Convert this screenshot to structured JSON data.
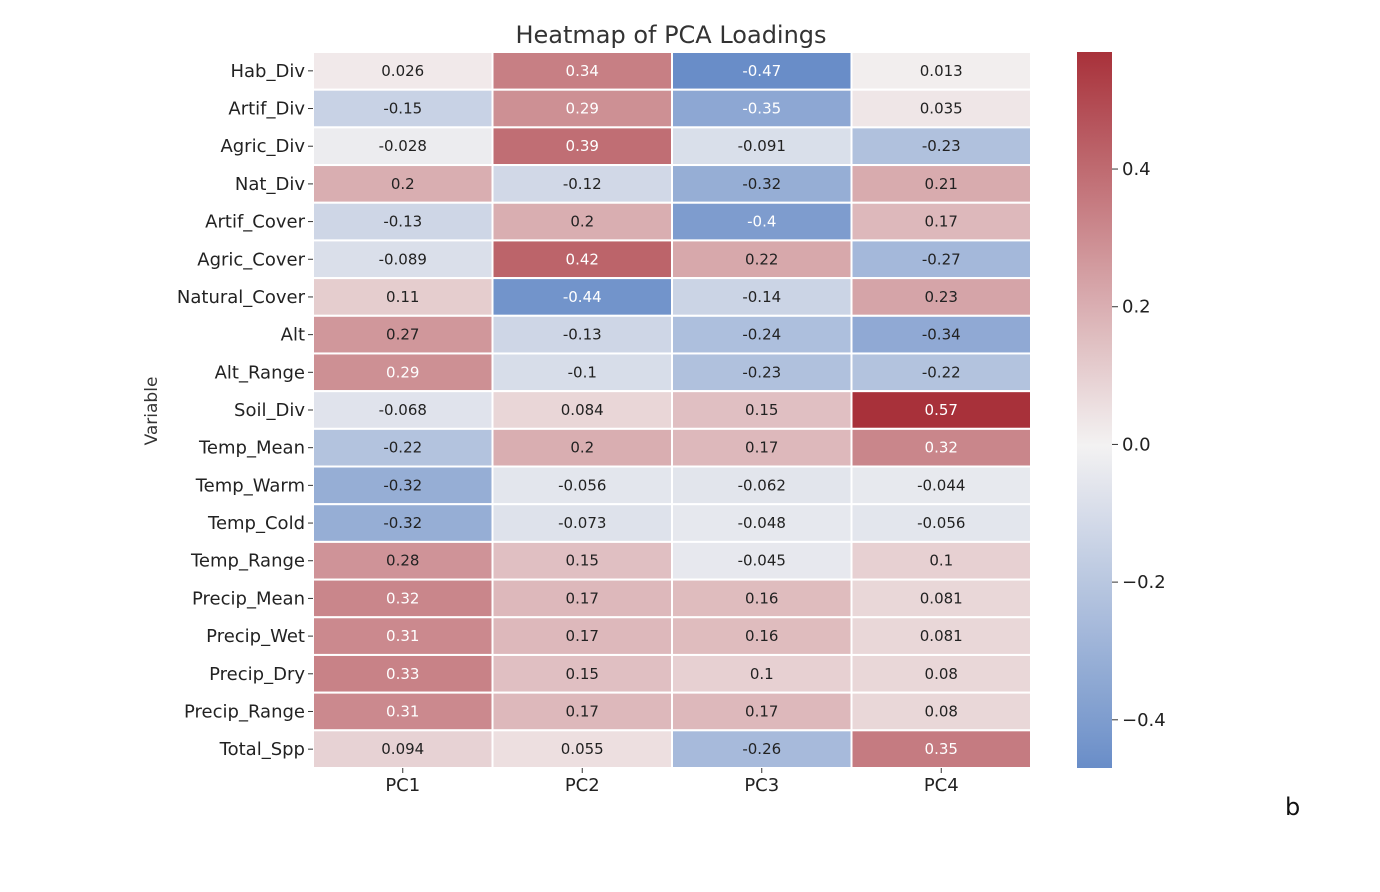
{
  "panel_label": "b",
  "chart_data": {
    "type": "heatmap",
    "title": "Heatmap of PCA Loadings",
    "ylabel": "Variable",
    "xlabel": "",
    "columns": [
      "PC1",
      "PC2",
      "PC3",
      "PC4"
    ],
    "rows": [
      "Hab_Div",
      "Artif_Div",
      "Agric_Div",
      "Nat_Div",
      "Artif_Cover",
      "Agric_Cover",
      "Natural_Cover",
      "Alt",
      "Alt_Range",
      "Soil_Div",
      "Temp_Mean",
      "Temp_Warm",
      "Temp_Cold",
      "Temp_Range",
      "Precip_Mean",
      "Precip_Wet",
      "Precip_Dry",
      "Precip_Range",
      "Total_Spp"
    ],
    "values": [
      [
        0.026,
        0.34,
        -0.47,
        0.013
      ],
      [
        -0.15,
        0.29,
        -0.35,
        0.035
      ],
      [
        -0.028,
        0.39,
        -0.091,
        -0.23
      ],
      [
        0.2,
        -0.12,
        -0.32,
        0.21
      ],
      [
        -0.13,
        0.2,
        -0.4,
        0.17
      ],
      [
        -0.089,
        0.42,
        0.22,
        -0.27
      ],
      [
        0.11,
        -0.44,
        -0.14,
        0.23
      ],
      [
        0.27,
        -0.13,
        -0.24,
        -0.34
      ],
      [
        0.29,
        -0.1,
        -0.23,
        -0.22
      ],
      [
        -0.068,
        0.084,
        0.15,
        0.57
      ],
      [
        -0.22,
        0.2,
        0.17,
        0.32
      ],
      [
        -0.32,
        -0.056,
        -0.062,
        -0.044
      ],
      [
        -0.32,
        -0.073,
        -0.048,
        -0.056
      ],
      [
        0.28,
        0.15,
        -0.045,
        0.1
      ],
      [
        0.32,
        0.17,
        0.16,
        0.081
      ],
      [
        0.31,
        0.17,
        0.16,
        0.081
      ],
      [
        0.33,
        0.15,
        0.1,
        0.08
      ],
      [
        0.31,
        0.17,
        0.17,
        0.08
      ],
      [
        0.094,
        0.055,
        -0.26,
        0.35
      ]
    ],
    "labels": [
      [
        "0.026",
        "0.34",
        "-0.47",
        "0.013"
      ],
      [
        "-0.15",
        "0.29",
        "-0.35",
        "0.035"
      ],
      [
        "-0.028",
        "0.39",
        "-0.091",
        "-0.23"
      ],
      [
        "0.2",
        "-0.12",
        "-0.32",
        "0.21"
      ],
      [
        "-0.13",
        "0.2",
        "-0.4",
        "0.17"
      ],
      [
        "-0.089",
        "0.42",
        "0.22",
        "-0.27"
      ],
      [
        "0.11",
        "-0.44",
        "-0.14",
        "0.23"
      ],
      [
        "0.27",
        "-0.13",
        "-0.24",
        "-0.34"
      ],
      [
        "0.29",
        "-0.1",
        "-0.23",
        "-0.22"
      ],
      [
        "-0.068",
        "0.084",
        "0.15",
        "0.57"
      ],
      [
        "-0.22",
        "0.2",
        "0.17",
        "0.32"
      ],
      [
        "-0.32",
        "-0.056",
        "-0.062",
        "-0.044"
      ],
      [
        "-0.32",
        "-0.073",
        "-0.048",
        "-0.056"
      ],
      [
        "0.28",
        "0.15",
        "-0.045",
        "0.1"
      ],
      [
        "0.32",
        "0.17",
        "0.16",
        "0.081"
      ],
      [
        "0.31",
        "0.17",
        "0.16",
        "0.081"
      ],
      [
        "0.33",
        "0.15",
        "0.1",
        "0.08"
      ],
      [
        "0.31",
        "0.17",
        "0.17",
        "0.08"
      ],
      [
        "0.094",
        "0.055",
        "-0.26",
        "0.35"
      ]
    ],
    "colormap": "vlag",
    "color_range": [
      -0.47,
      0.57
    ],
    "colorbar_ticks": [
      0.4,
      0.2,
      0.0,
      -0.2,
      -0.4
    ],
    "colorbar_tick_labels": [
      "0.4",
      "0.2",
      "0.0",
      "−0.2",
      "−0.4"
    ],
    "colors": {
      "low": "#4c78bf",
      "mid": "#f4f2f2",
      "high": "#a8313a"
    },
    "grid": false
  }
}
